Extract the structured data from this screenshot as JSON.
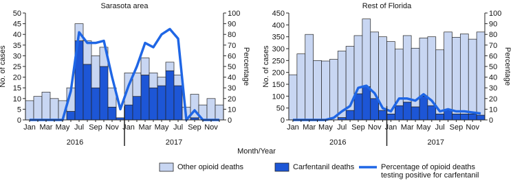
{
  "x_label": "Month/Year",
  "chart_data": [
    {
      "type": "bar",
      "title": "Sarasota area",
      "stacked": true,
      "categories": [
        "Jan",
        null,
        "Mar",
        null,
        "May",
        null,
        "Jul",
        null,
        "Sep",
        null,
        "Nov",
        null,
        "Jan",
        null,
        "Mar",
        null,
        "May",
        null,
        "Jul",
        null,
        "Sep",
        null,
        "Nov",
        null
      ],
      "year_labels": [
        "2016",
        "2017"
      ],
      "y_label": "No. of cases",
      "y2_label": "Percentage",
      "ylim": [
        0,
        50
      ],
      "yticks": [
        0,
        5,
        10,
        15,
        20,
        25,
        30,
        35,
        40,
        45,
        50
      ],
      "y2lim": [
        0,
        100
      ],
      "y2ticks": [
        0,
        10,
        20,
        30,
        40,
        50,
        60,
        70,
        80,
        90,
        100
      ],
      "series": [
        {
          "name": "Carfentanil deaths",
          "type": "bar",
          "color": "#1d56d6",
          "values": [
            0,
            0,
            0,
            0,
            0,
            4,
            37,
            26,
            15,
            25,
            6,
            1,
            7,
            11,
            21,
            15,
            16,
            23,
            16,
            0,
            1,
            0,
            0,
            0
          ]
        },
        {
          "name": "Other opioid deaths",
          "type": "bar",
          "color": "#c8d6f2",
          "values": [
            9,
            11,
            13,
            10,
            9,
            11,
            8,
            11,
            15,
            9,
            9,
            0,
            15,
            11,
            8,
            7,
            4,
            4,
            5,
            6,
            11,
            7,
            10,
            7
          ]
        },
        {
          "name": "Percentage of opioid deaths testing positive for carfentanil",
          "type": "line",
          "axis": "y2",
          "color": "#1f66e5",
          "values": [
            0,
            0,
            0,
            0,
            0,
            27,
            82,
            72,
            72,
            74,
            40,
            10,
            32,
            50,
            72,
            68,
            80,
            85,
            76,
            0,
            9,
            0,
            0,
            0
          ]
        }
      ]
    },
    {
      "type": "bar",
      "title": "Rest of Florida",
      "stacked": true,
      "categories": [
        "Jan",
        null,
        "Mar",
        null,
        "May",
        null,
        "Jul",
        null,
        "Sep",
        null,
        "Nov",
        null,
        "Jan",
        null,
        "Mar",
        null,
        "May",
        null,
        "Jul",
        null,
        "Sep",
        null,
        "Nov",
        null
      ],
      "year_labels": [
        "2016",
        "2017"
      ],
      "y_label": "No. of cases",
      "y2_label": "Percentage",
      "ylim": [
        0,
        450
      ],
      "yticks": [
        0,
        50,
        100,
        150,
        200,
        250,
        300,
        350,
        400,
        450
      ],
      "y2lim": [
        0,
        100
      ],
      "y2ticks": [
        0,
        10,
        20,
        30,
        40,
        50,
        60,
        70,
        80,
        90,
        100
      ],
      "series": [
        {
          "name": "Carfentanil deaths",
          "type": "bar",
          "color": "#1d56d6",
          "values": [
            0,
            0,
            0,
            0,
            0,
            0,
            10,
            40,
            110,
            140,
            90,
            40,
            25,
            60,
            75,
            55,
            100,
            60,
            25,
            40,
            25,
            25,
            25,
            20
          ]
        },
        {
          "name": "Other opioid deaths",
          "type": "bar",
          "color": "#c8d6f2",
          "values": [
            190,
            278,
            360,
            250,
            248,
            255,
            280,
            270,
            245,
            285,
            280,
            310,
            305,
            238,
            280,
            247,
            245,
            290,
            270,
            330,
            323,
            337,
            315,
            350
          ]
        },
        {
          "name": "Percentage of opioid deaths testing positive for carfentanil",
          "type": "line",
          "axis": "y2",
          "color": "#1f66e5",
          "values": [
            0,
            0,
            0,
            0,
            0,
            2,
            8,
            13,
            30,
            32,
            25,
            11,
            8,
            20,
            20,
            18,
            24,
            18,
            8,
            10,
            8,
            8,
            7,
            6
          ]
        }
      ]
    }
  ]
}
